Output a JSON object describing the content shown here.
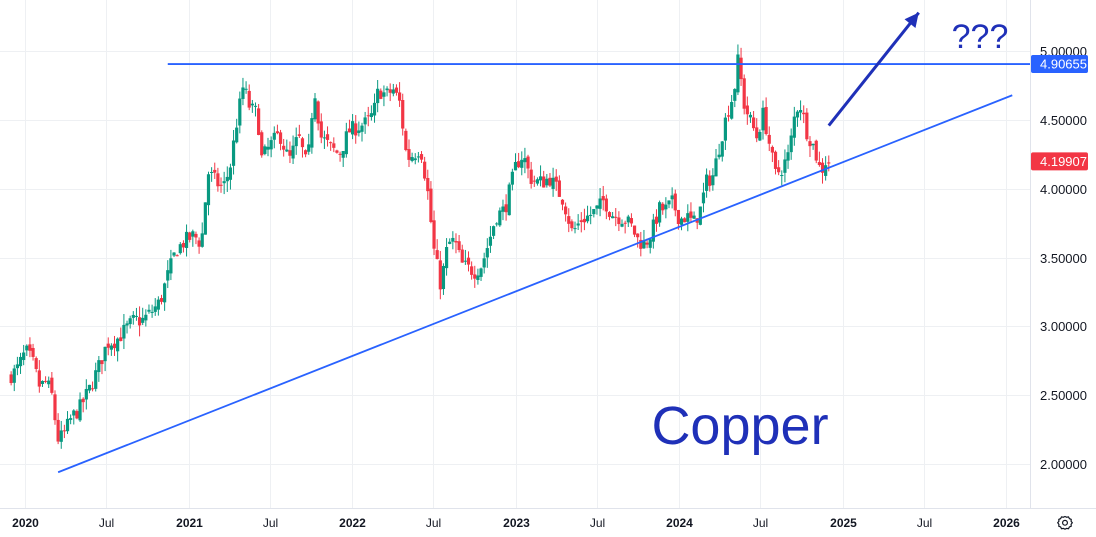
{
  "chart_data": {
    "type": "candlestick",
    "title": "",
    "annotations": {
      "watermark": "Copper",
      "question": "???"
    },
    "y_ticks": [
      "2.00000",
      "2.50000",
      "3.00000",
      "3.50000",
      "4.00000",
      "4.50000",
      "5.00000"
    ],
    "y_tick_values": [
      2.0,
      2.5,
      3.0,
      3.5,
      4.0,
      4.5,
      5.0
    ],
    "x_ticks": [
      {
        "label": "2020",
        "date": "2020-01-01",
        "year": true
      },
      {
        "label": "Jul",
        "date": "2020-07-01",
        "year": false
      },
      {
        "label": "2021",
        "date": "2021-01-01",
        "year": true
      },
      {
        "label": "Jul",
        "date": "2021-07-01",
        "year": false
      },
      {
        "label": "2022",
        "date": "2022-01-01",
        "year": true
      },
      {
        "label": "Jul",
        "date": "2022-07-01",
        "year": false
      },
      {
        "label": "2023",
        "date": "2023-01-01",
        "year": true
      },
      {
        "label": "Jul",
        "date": "2023-07-01",
        "year": false
      },
      {
        "label": "2024",
        "date": "2024-01-01",
        "year": true
      },
      {
        "label": "Jul",
        "date": "2024-07-01",
        "year": false
      },
      {
        "label": "2025",
        "date": "2025-01-01",
        "year": true
      },
      {
        "label": "Jul",
        "date": "2025-07-01",
        "year": false
      },
      {
        "label": "2026",
        "date": "2026-01-01",
        "year": true
      }
    ],
    "price_labels": [
      {
        "text": "4.90655",
        "value": 4.90655,
        "color": "#2962ff"
      },
      {
        "text": "4.19907",
        "value": 4.19907,
        "color": "#f23645"
      }
    ],
    "resistance_line": {
      "value": 4.90655,
      "x_start": "2020-11-15",
      "color": "#2962ff"
    },
    "trend_line": {
      "points": [
        [
          "2020-03-15",
          1.94
        ],
        [
          "2026-01-15",
          4.68
        ]
      ],
      "color": "#2962ff"
    },
    "arrow": {
      "from": [
        "2024-12-01",
        4.46
      ],
      "to": [
        "2025-06-20",
        5.28
      ],
      "color": "#1f30b8"
    },
    "colors": {
      "up": "#089981",
      "down": "#f23645",
      "grid": "#eef0f3"
    },
    "series_points": [
      [
        "2019-12-01",
        2.63
      ],
      [
        "2019-12-20",
        2.68
      ],
      [
        "2020-01-10",
        2.82
      ],
      [
        "2020-01-25",
        2.74
      ],
      [
        "2020-02-10",
        2.56
      ],
      [
        "2020-02-25",
        2.6
      ],
      [
        "2020-03-10",
        2.48
      ],
      [
        "2020-03-20",
        2.18
      ],
      [
        "2020-04-01",
        2.2
      ],
      [
        "2020-04-20",
        2.33
      ],
      [
        "2020-05-10",
        2.41
      ],
      [
        "2020-06-01",
        2.55
      ],
      [
        "2020-06-20",
        2.7
      ],
      [
        "2020-07-10",
        2.88
      ],
      [
        "2020-07-30",
        2.9
      ],
      [
        "2020-08-20",
        2.98
      ],
      [
        "2020-09-10",
        3.05
      ],
      [
        "2020-09-25",
        3.04
      ],
      [
        "2020-10-15",
        3.1
      ],
      [
        "2020-11-05",
        3.18
      ],
      [
        "2020-11-20",
        3.35
      ],
      [
        "2020-12-10",
        3.55
      ],
      [
        "2020-12-30",
        3.62
      ],
      [
        "2021-01-20",
        3.66
      ],
      [
        "2021-02-05",
        3.6
      ],
      [
        "2021-02-20",
        4.12
      ],
      [
        "2021-03-10",
        4.05
      ],
      [
        "2021-03-25",
        4.0
      ],
      [
        "2021-04-10",
        4.15
      ],
      [
        "2021-04-25",
        4.48
      ],
      [
        "2021-05-10",
        4.75
      ],
      [
        "2021-05-25",
        4.58
      ],
      [
        "2021-06-10",
        4.55
      ],
      [
        "2021-06-20",
        4.22
      ],
      [
        "2021-07-10",
        4.32
      ],
      [
        "2021-07-30",
        4.4
      ],
      [
        "2021-08-20",
        4.2
      ],
      [
        "2021-09-10",
        4.38
      ],
      [
        "2021-09-30",
        4.15
      ],
      [
        "2021-10-15",
        4.75
      ],
      [
        "2021-10-30",
        4.38
      ],
      [
        "2021-11-20",
        4.3
      ],
      [
        "2021-12-10",
        4.25
      ],
      [
        "2022-01-01",
        4.42
      ],
      [
        "2022-01-20",
        4.45
      ],
      [
        "2022-02-10",
        4.48
      ],
      [
        "2022-02-25",
        4.55
      ],
      [
        "2022-03-08",
        4.72
      ],
      [
        "2022-03-25",
        4.68
      ],
      [
        "2022-04-10",
        4.72
      ],
      [
        "2022-04-25",
        4.62
      ],
      [
        "2022-05-10",
        4.22
      ],
      [
        "2022-05-25",
        4.25
      ],
      [
        "2022-06-10",
        4.3
      ],
      [
        "2022-06-25",
        4.0
      ],
      [
        "2022-07-10",
        3.55
      ],
      [
        "2022-07-25",
        3.3
      ],
      [
        "2022-08-10",
        3.6
      ],
      [
        "2022-08-25",
        3.62
      ],
      [
        "2022-09-10",
        3.45
      ],
      [
        "2022-09-25",
        3.42
      ],
      [
        "2022-10-10",
        3.4
      ],
      [
        "2022-10-25",
        3.45
      ],
      [
        "2022-11-10",
        3.62
      ],
      [
        "2022-11-25",
        3.8
      ],
      [
        "2022-12-15",
        3.85
      ],
      [
        "2023-01-10",
        4.18
      ],
      [
        "2023-01-25",
        4.25
      ],
      [
        "2023-02-10",
        4.08
      ],
      [
        "2023-02-25",
        4.05
      ],
      [
        "2023-03-10",
        4.05
      ],
      [
        "2023-03-25",
        4.08
      ],
      [
        "2023-04-10",
        4.0
      ],
      [
        "2023-04-25",
        3.92
      ],
      [
        "2023-05-15",
        3.68
      ],
      [
        "2023-06-05",
        3.78
      ],
      [
        "2023-06-20",
        3.8
      ],
      [
        "2023-07-10",
        3.85
      ],
      [
        "2023-07-25",
        3.92
      ],
      [
        "2023-08-10",
        3.82
      ],
      [
        "2023-08-25",
        3.8
      ],
      [
        "2023-09-10",
        3.78
      ],
      [
        "2023-09-25",
        3.72
      ],
      [
        "2023-10-10",
        3.62
      ],
      [
        "2023-10-25",
        3.6
      ],
      [
        "2023-11-10",
        3.7
      ],
      [
        "2023-11-25",
        3.85
      ],
      [
        "2023-12-10",
        3.85
      ],
      [
        "2023-12-25",
        3.9
      ],
      [
        "2024-01-10",
        3.78
      ],
      [
        "2024-01-25",
        3.8
      ],
      [
        "2024-02-10",
        3.75
      ],
      [
        "2024-02-25",
        3.85
      ],
      [
        "2024-03-10",
        4.05
      ],
      [
        "2024-03-25",
        4.1
      ],
      [
        "2024-04-10",
        4.35
      ],
      [
        "2024-04-25",
        4.55
      ],
      [
        "2024-05-10",
        4.7
      ],
      [
        "2024-05-20",
        4.95
      ],
      [
        "2024-06-01",
        4.62
      ],
      [
        "2024-06-15",
        4.5
      ],
      [
        "2024-06-30",
        4.38
      ],
      [
        "2024-07-15",
        4.55
      ],
      [
        "2024-07-30",
        4.3
      ],
      [
        "2024-08-10",
        4.1
      ],
      [
        "2024-08-25",
        4.15
      ],
      [
        "2024-09-10",
        4.25
      ],
      [
        "2024-09-25",
        4.58
      ],
      [
        "2024-10-05",
        4.62
      ],
      [
        "2024-10-20",
        4.42
      ],
      [
        "2024-11-05",
        4.3
      ],
      [
        "2024-11-20",
        4.12
      ],
      [
        "2024-12-01",
        4.19907
      ]
    ]
  }
}
